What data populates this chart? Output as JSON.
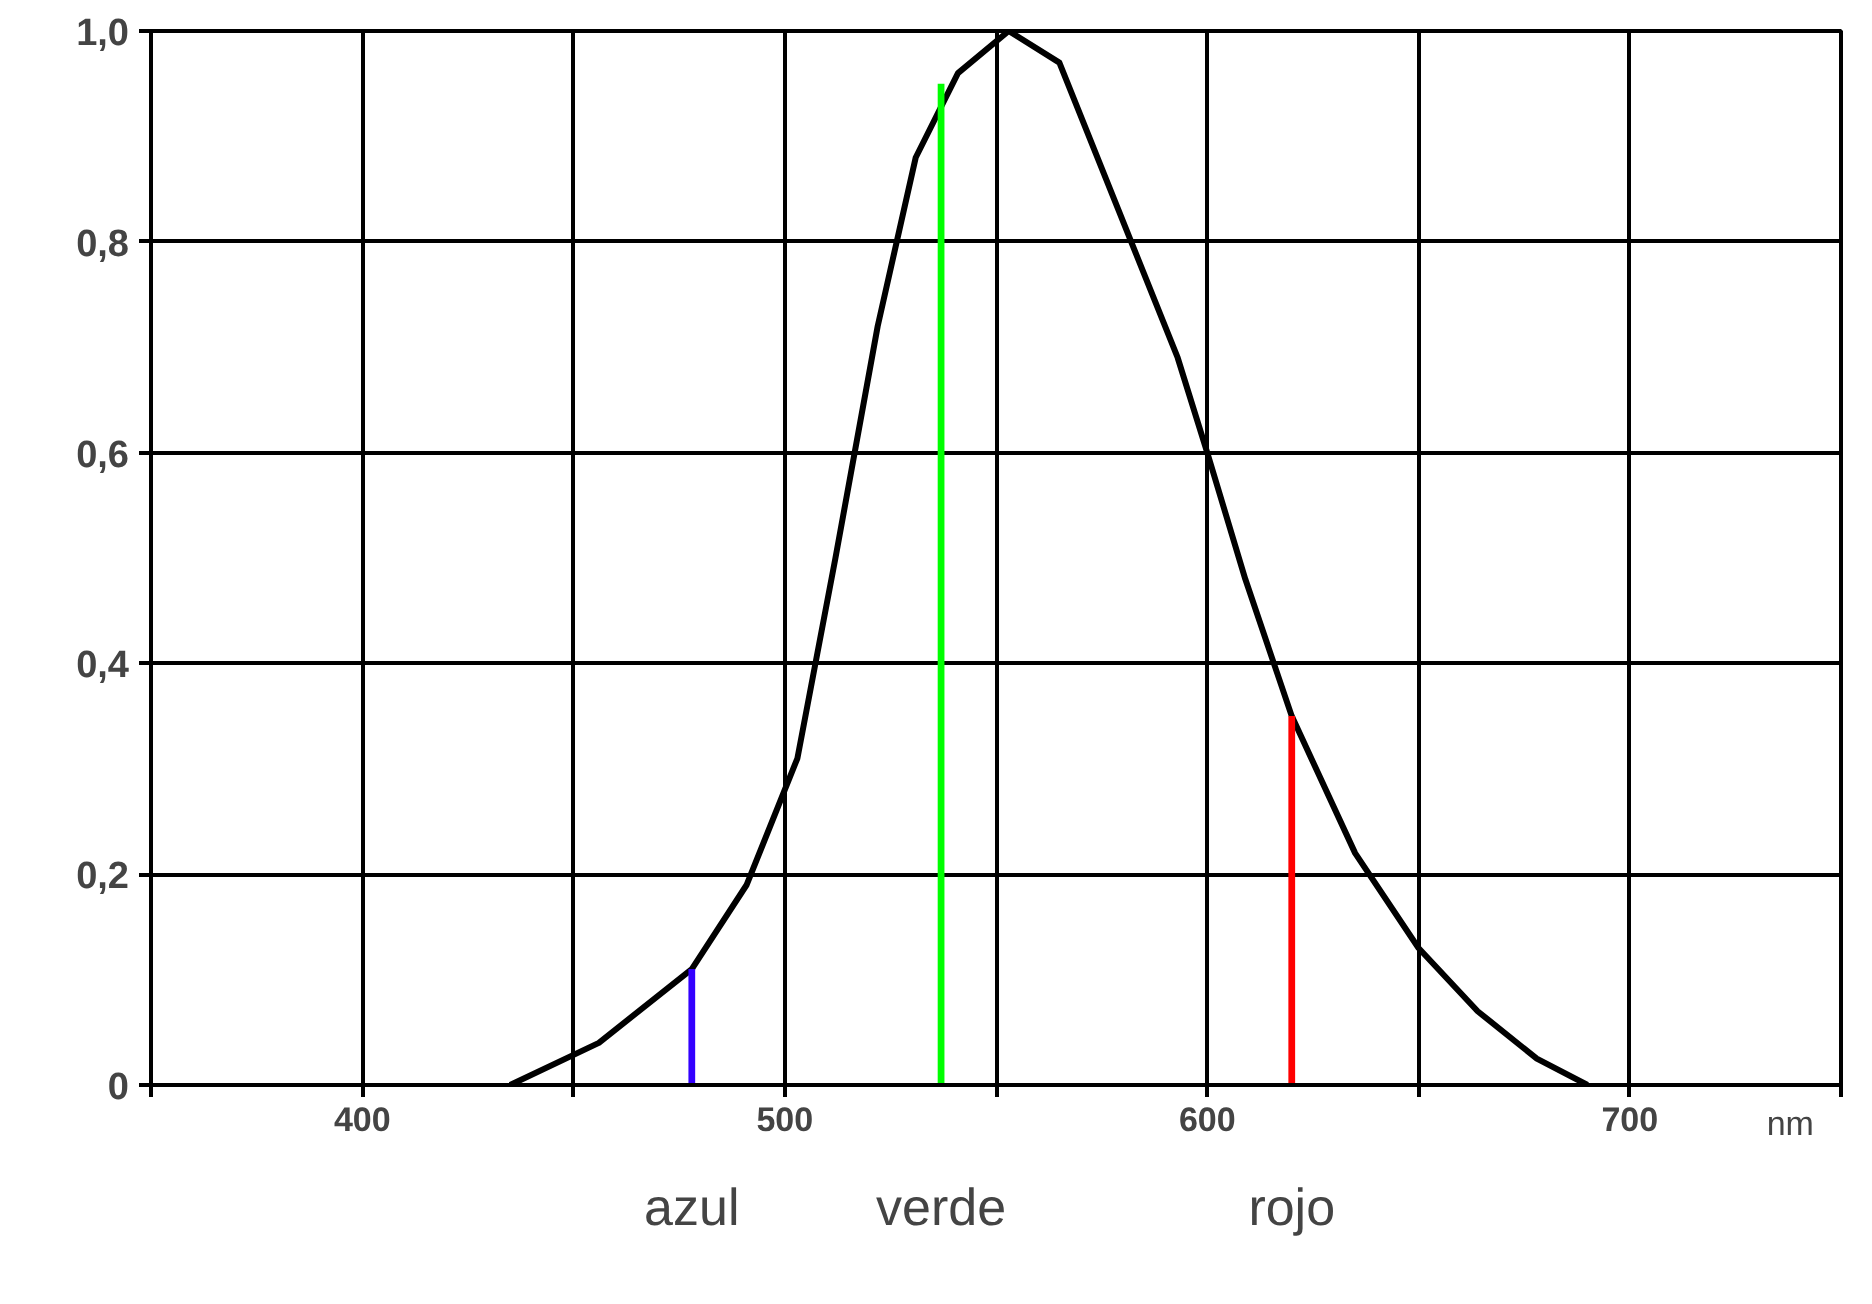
{
  "chart_data": {
    "type": "line",
    "xlabel": "nm",
    "xlim": [
      350,
      750
    ],
    "ylim": [
      0,
      1.0
    ],
    "xticks": [
      {
        "value": 350,
        "label": null
      },
      400,
      {
        "value": 450,
        "label": null
      },
      500,
      {
        "value": 550,
        "label": null
      },
      600,
      {
        "value": 650,
        "label": null
      },
      700,
      {
        "value": 750,
        "label": null
      }
    ],
    "yticks": [
      {
        "value": 0,
        "label": "0"
      },
      {
        "value": 0.2,
        "label": "0,2"
      },
      {
        "value": 0.4,
        "label": "0,4"
      },
      {
        "value": 0.6,
        "label": "0,6"
      },
      {
        "value": 0.8,
        "label": "0,8"
      },
      {
        "value": 1.0,
        "label": "1,0"
      }
    ],
    "grid": true,
    "series": [
      {
        "color": "#000000",
        "x": [
          435,
          456,
          478,
          491,
          503,
          512,
          522,
          531,
          541,
          553,
          565,
          579,
          593,
          600,
          609,
          620,
          635,
          650,
          664,
          678,
          690
        ],
        "values": [
          0.0,
          0.04,
          0.11,
          0.19,
          0.31,
          0.5,
          0.72,
          0.88,
          0.96,
          1.0,
          0.97,
          0.83,
          0.69,
          0.6,
          0.48,
          0.35,
          0.22,
          0.13,
          0.07,
          0.025,
          0.0
        ]
      },
      {
        "type": "bar",
        "x": [
          478,
          537,
          620
        ],
        "values": [
          0.11,
          0.95,
          0.35
        ],
        "colors": [
          "#3300ff",
          "#00ff00",
          "#ff0000"
        ]
      }
    ],
    "annotations": [
      "azul",
      "verde",
      "rojo"
    ]
  }
}
